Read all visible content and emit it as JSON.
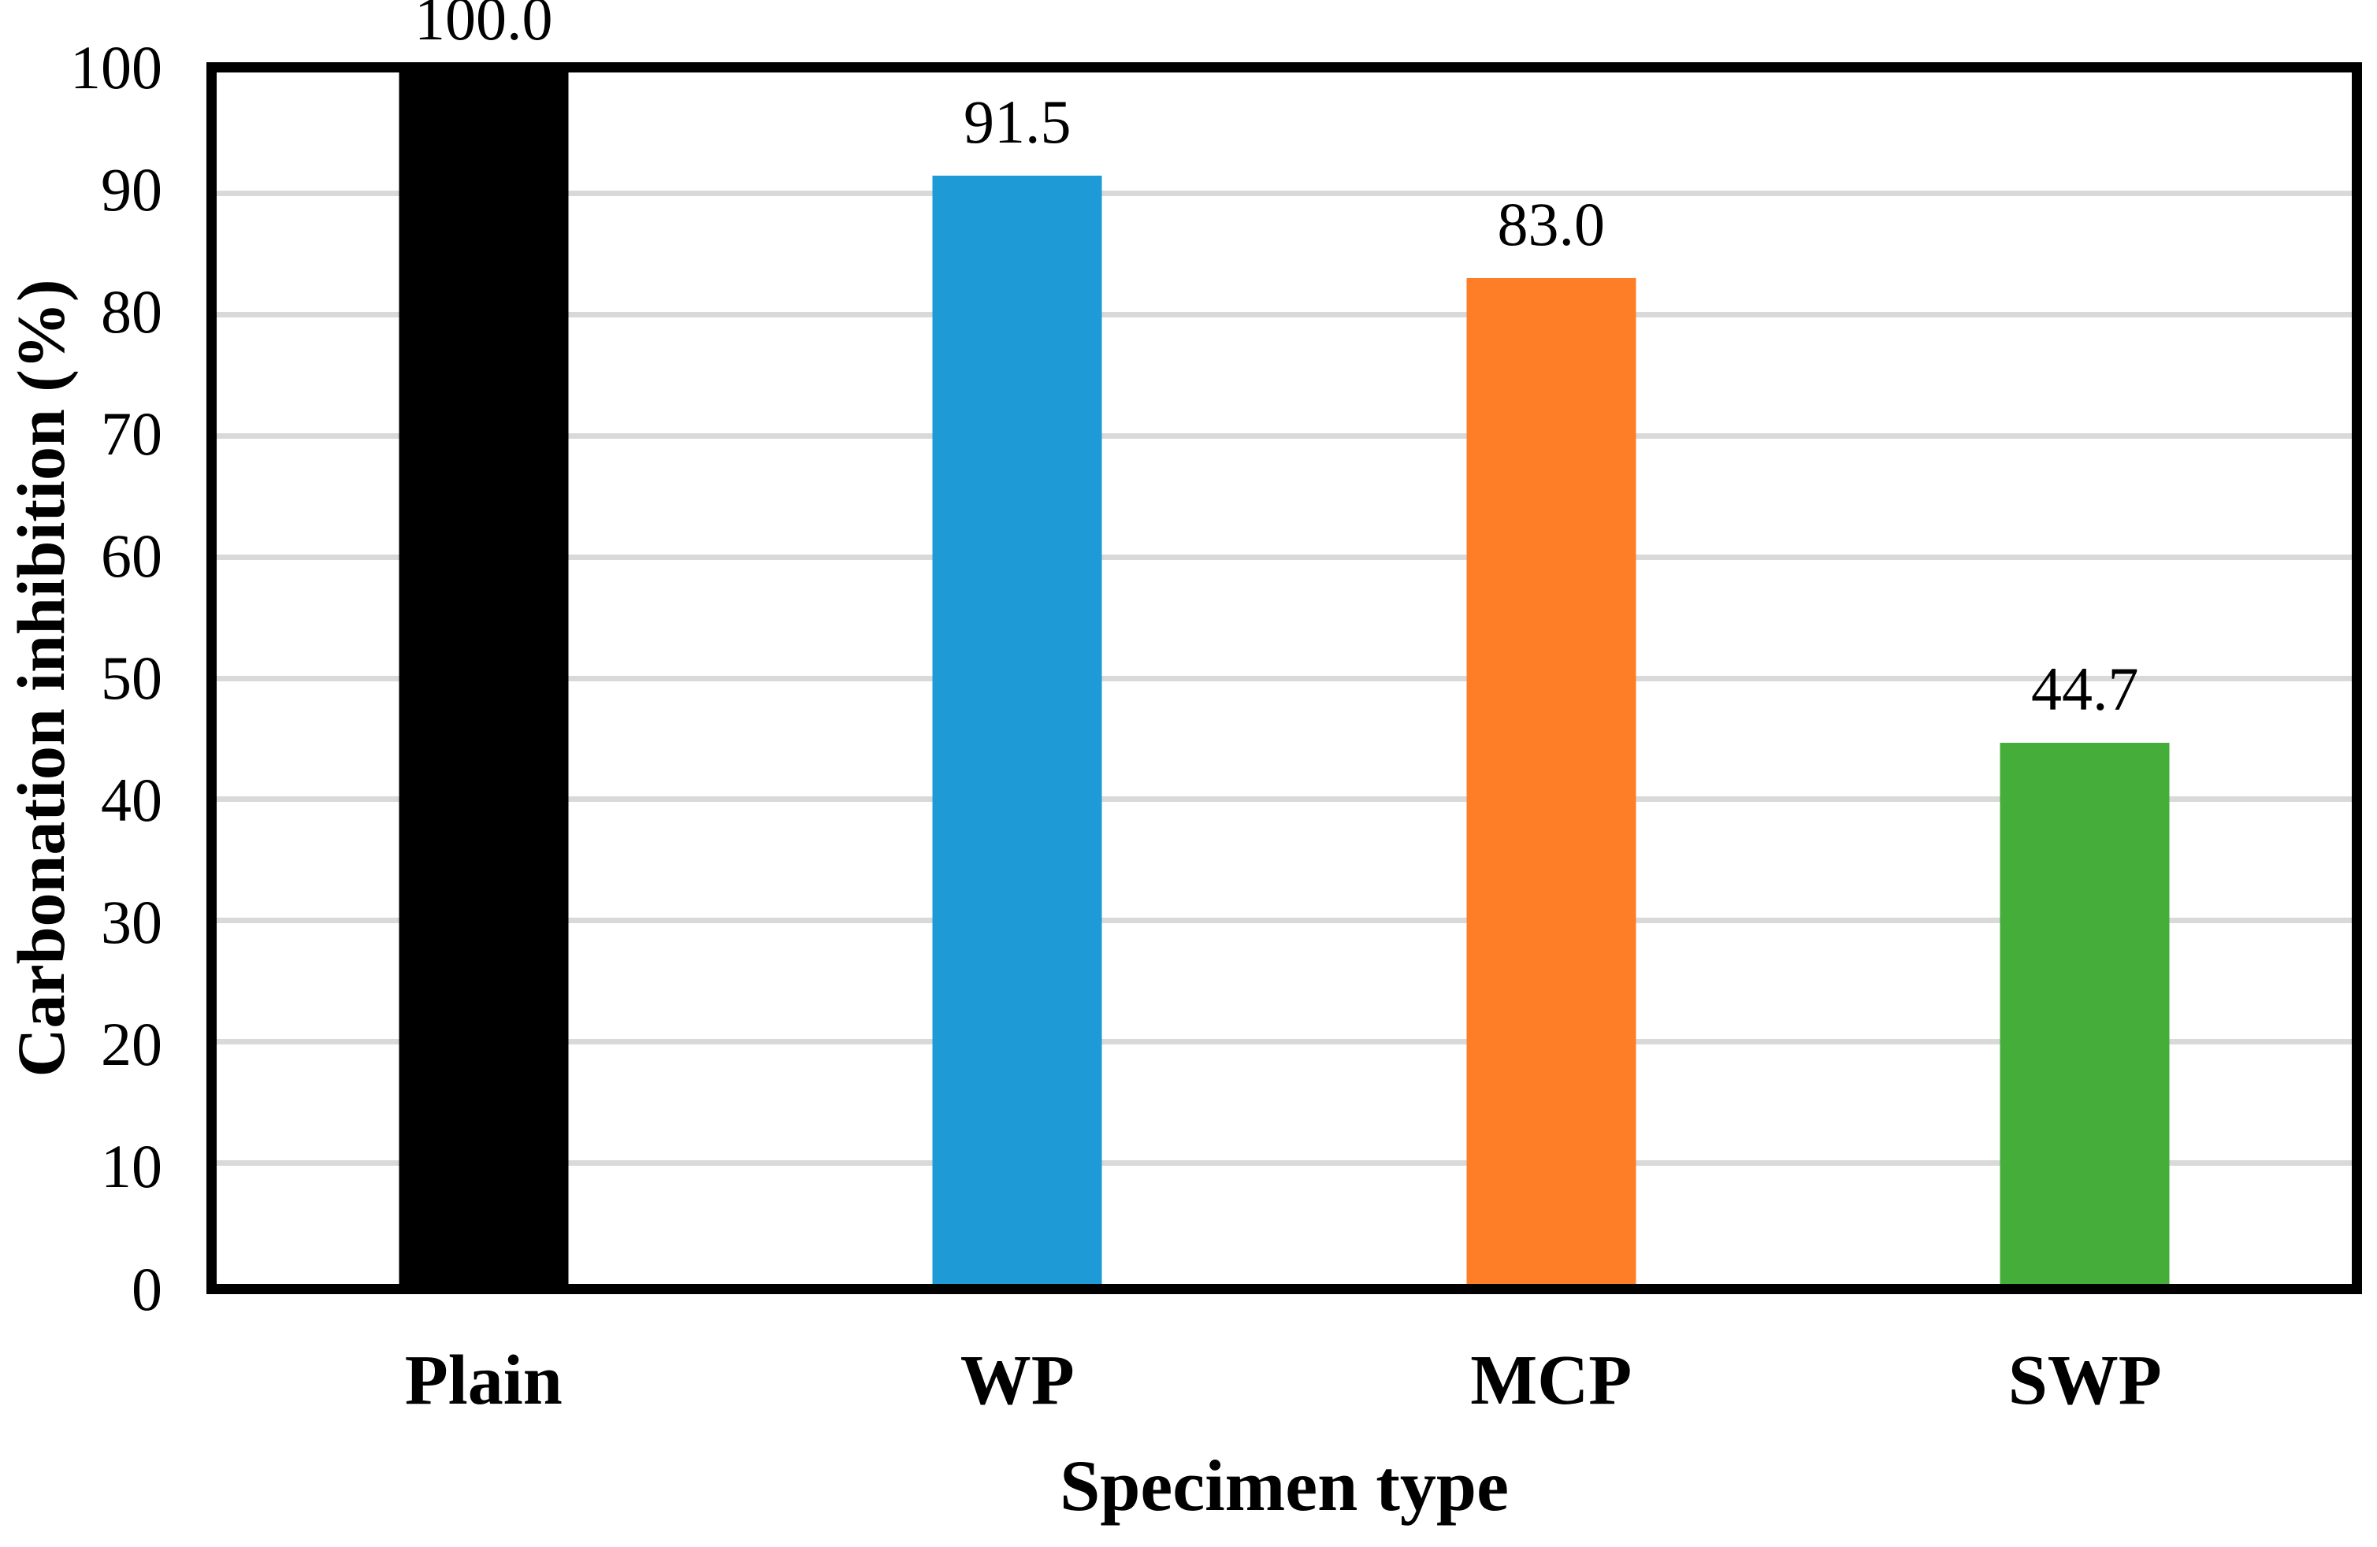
{
  "chart_data": {
    "type": "bar",
    "title": "",
    "categories": [
      "Plain",
      "WP",
      "MCP",
      "SWP"
    ],
    "values": [
      100.0,
      91.5,
      83.0,
      44.7
    ],
    "value_labels": [
      "100.0",
      "91.5",
      "83.0",
      "44.7"
    ],
    "bar_colors": [
      "#000000",
      "#1E9BD7",
      "#FD7E26",
      "#45AE3B"
    ],
    "xlabel": "Specimen type",
    "ylabel": "Carbonation inhibition (%)",
    "ylim": [
      0,
      100
    ],
    "ytick_interval": 10,
    "ytick_labels": [
      "0",
      "10",
      "20",
      "30",
      "40",
      "50",
      "60",
      "70",
      "80",
      "90",
      "100"
    ],
    "gridlines": "horizontal, every 10 units",
    "gridline_color": "#D9D9D9",
    "plot_border_color": "#000000",
    "legend_position": "none"
  }
}
